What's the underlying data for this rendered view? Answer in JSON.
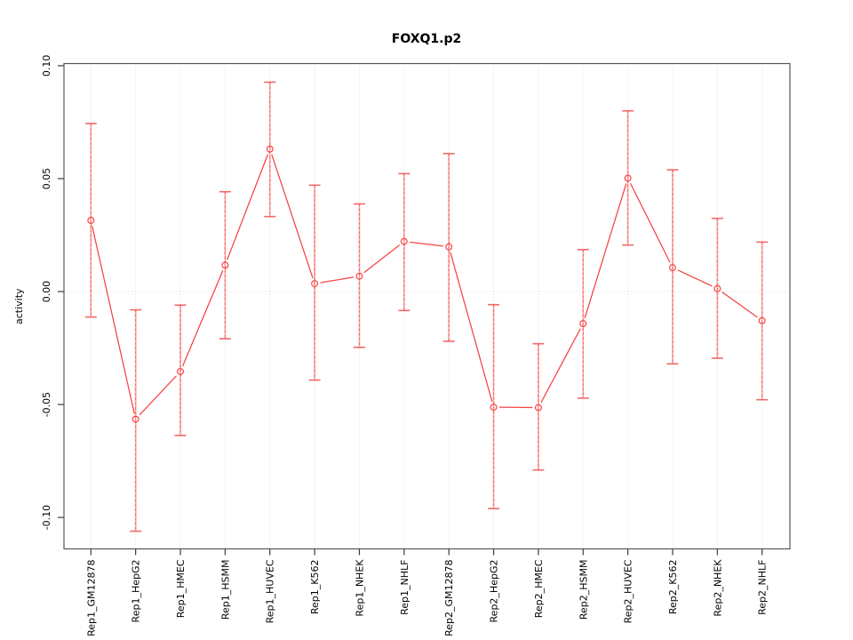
{
  "chart_data": {
    "type": "line",
    "title": "FOXQ1.p2",
    "ylabel": "activity",
    "xlabel": "",
    "legend": "none",
    "grid": {
      "vertical_dotted": true,
      "zero_line_dotted": true
    },
    "categories": [
      "Rep1_GM12878",
      "Rep1_HepG2",
      "Rep1_HMEC",
      "Rep1_HSMM",
      "Rep1_HUVEC",
      "Rep1_K562",
      "Rep1_NHEK",
      "Rep1_NHLF",
      "Rep2_GM12878",
      "Rep2_HepG2",
      "Rep2_HMEC",
      "Rep2_HSMM",
      "Rep2_HUVEC",
      "Rep2_K562",
      "Rep2_NHEK",
      "Rep2_NHLF"
    ],
    "series": [
      {
        "name": "activity",
        "values": [
          0.0315,
          -0.0565,
          -0.0354,
          0.0117,
          0.0631,
          0.0035,
          0.0068,
          0.0222,
          0.0198,
          -0.0512,
          -0.0514,
          -0.0142,
          0.0502,
          0.0106,
          0.0013,
          -0.0129
        ]
      }
    ],
    "error_upper": [
      0.0744,
      -0.0081,
      -0.006,
      0.0442,
      0.0927,
      0.0471,
      0.0388,
      0.0522,
      0.0611,
      -0.0058,
      -0.0231,
      0.0186,
      0.08,
      0.0539,
      0.0324,
      0.0219
    ],
    "error_lower": [
      -0.0113,
      -0.1061,
      -0.0637,
      -0.0209,
      0.0332,
      -0.0392,
      -0.0247,
      -0.0084,
      -0.022,
      -0.0961,
      -0.079,
      -0.0472,
      0.0206,
      -0.032,
      -0.0295,
      -0.0479
    ],
    "yticks": [
      {
        "value": 0.1,
        "label": "0.10"
      },
      {
        "value": 0.05,
        "label": "0.05"
      },
      {
        "value": 0.0,
        "label": "0.00"
      },
      {
        "value": -0.05,
        "label": "-0.05"
      },
      {
        "value": -0.1,
        "label": "-0.10"
      }
    ],
    "ylim": [
      -0.114,
      0.101
    ],
    "colors": {
      "series": "#F74242",
      "error_bar": "#F05050",
      "error_bar_light": "#FBA9A9",
      "grid": "#D9D9D9",
      "box": "#575757",
      "tick": "#3A3A3A",
      "text": "#000000",
      "background": "#FFFFFF"
    }
  }
}
